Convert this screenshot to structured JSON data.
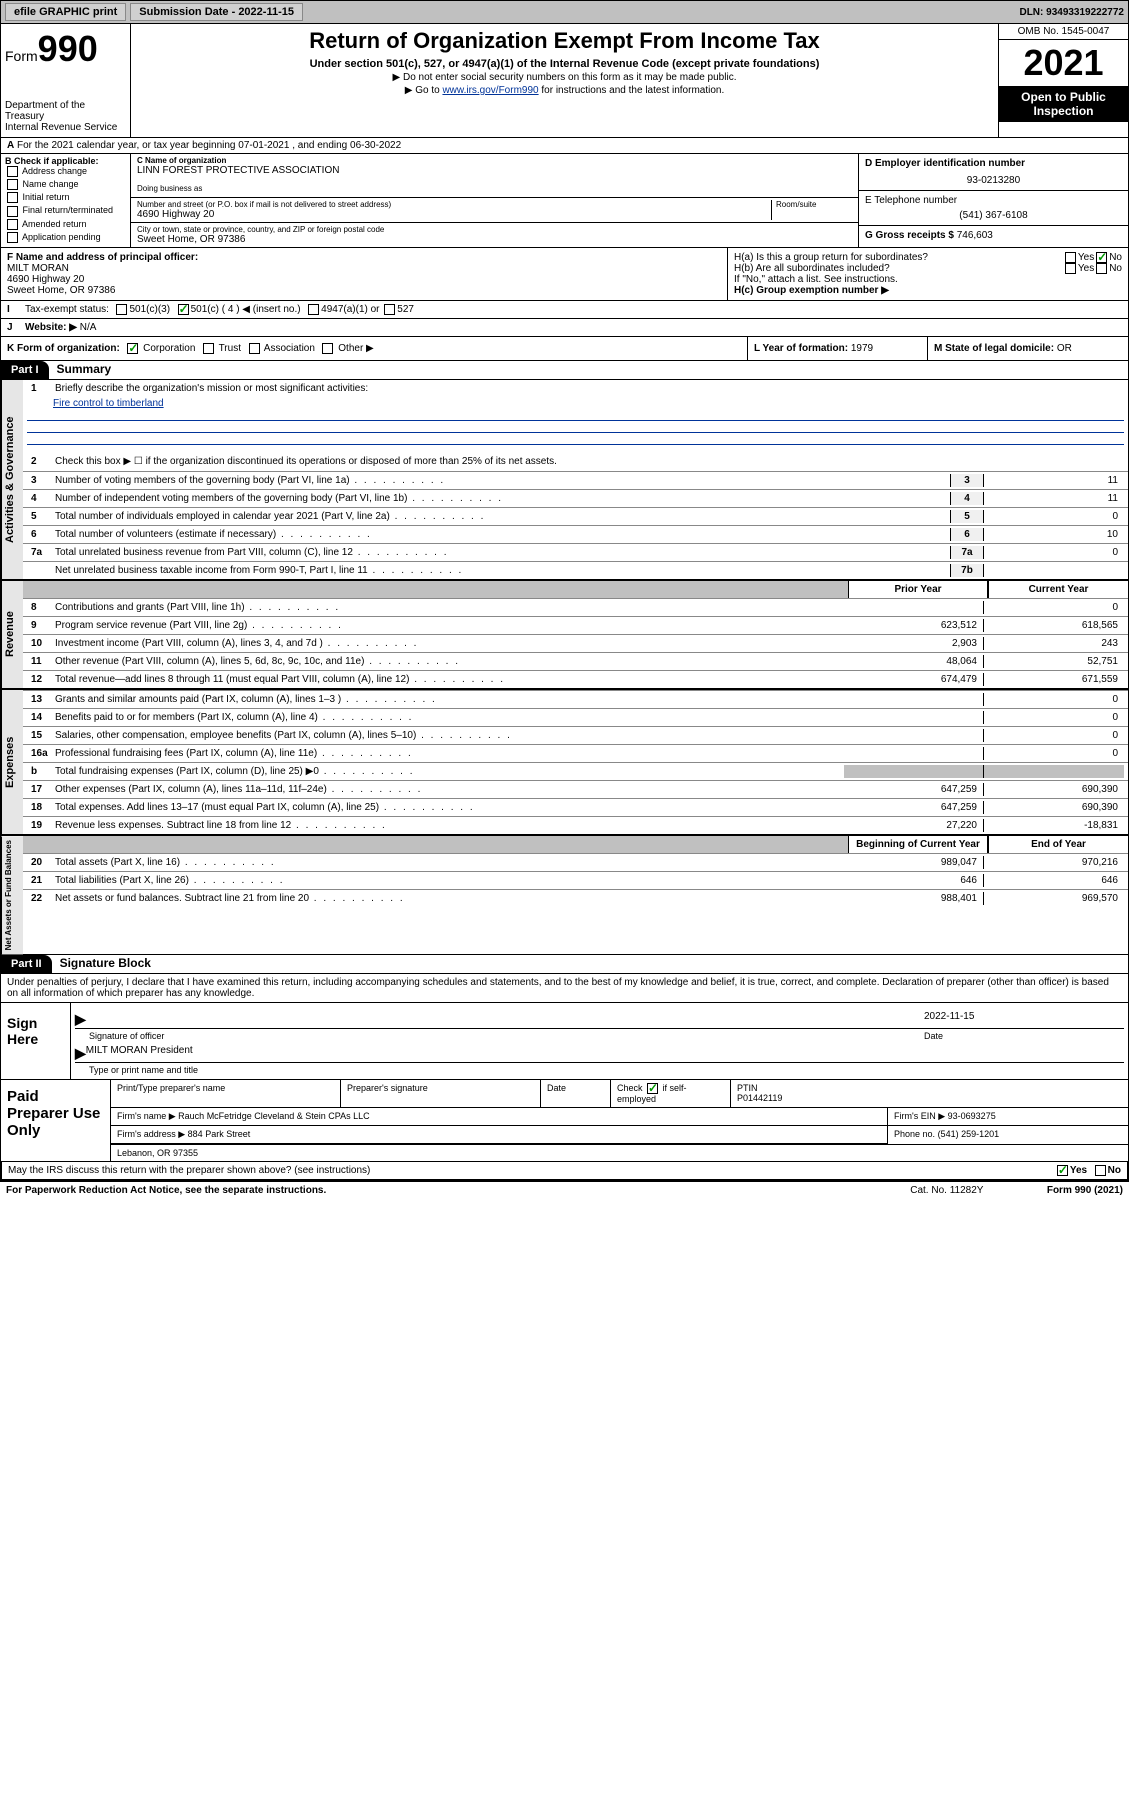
{
  "topbar": {
    "efile": "efile GRAPHIC print",
    "submission_label": "Submission Date - 2022-11-15",
    "dln": "DLN: 93493319222772"
  },
  "header": {
    "form_word": "Form",
    "form_num": "990",
    "title": "Return of Organization Exempt From Income Tax",
    "subtitle": "Under section 501(c), 527, or 4947(a)(1) of the Internal Revenue Code (except private foundations)",
    "note1": "▶ Do not enter social security numbers on this form as it may be made public.",
    "note2_pre": "▶ Go to ",
    "note2_link": "www.irs.gov/Form990",
    "note2_post": " for instructions and the latest information.",
    "dept": "Department of the Treasury",
    "irs": "Internal Revenue Service",
    "omb": "OMB No. 1545-0047",
    "year": "2021",
    "open": "Open to Public Inspection"
  },
  "rowA": "For the 2021 calendar year, or tax year beginning 07-01-2021   , and ending 06-30-2022",
  "boxB": {
    "label": "B Check if applicable:",
    "items": [
      "Address change",
      "Name change",
      "Initial return",
      "Final return/terminated",
      "Amended return",
      "Application pending"
    ]
  },
  "boxC": {
    "name_label": "C Name of organization",
    "name": "LINN FOREST PROTECTIVE ASSOCIATION",
    "dba_label": "Doing business as",
    "dba": "",
    "addr_label": "Number and street (or P.O. box if mail is not delivered to street address)",
    "room_label": "Room/suite",
    "addr": "4690 Highway 20",
    "city_label": "City or town, state or province, country, and ZIP or foreign postal code",
    "city": "Sweet Home, OR  97386"
  },
  "boxD": {
    "label": "D Employer identification number",
    "value": "93-0213280"
  },
  "boxE": {
    "label": "E Telephone number",
    "value": "(541) 367-6108"
  },
  "boxG": {
    "label": "G Gross receipts $",
    "value": "746,603"
  },
  "boxF": {
    "label": "F  Name and address of principal officer:",
    "name": "MILT MORAN",
    "addr1": "4690 Highway 20",
    "addr2": "Sweet Home, OR  97386"
  },
  "boxH": {
    "a": "H(a)  Is this a group return for subordinates?",
    "b": "H(b)  Are all subordinates included?",
    "b_note": "If \"No,\" attach a list. See instructions.",
    "c": "H(c)  Group exemption number ▶",
    "yes": "Yes",
    "no": "No"
  },
  "rowI": {
    "label": "Tax-exempt status:",
    "opts": [
      "501(c)(3)",
      "501(c) ( 4 ) ◀ (insert no.)",
      "4947(a)(1) or",
      "527"
    ]
  },
  "rowJ": {
    "label": "Website: ▶",
    "value": "N/A"
  },
  "rowK": {
    "label": "K Form of organization:",
    "opts": [
      "Corporation",
      "Trust",
      "Association",
      "Other ▶"
    ]
  },
  "rowL": {
    "label": "L Year of formation:",
    "value": "1979"
  },
  "rowM": {
    "label": "M State of legal domicile:",
    "value": "OR"
  },
  "part1": {
    "header": "Part I",
    "title": "Summary",
    "line1": "Briefly describe the organization's mission or most significant activities:",
    "mission": "Fire control to timberland",
    "line2": "Check this box ▶ ☐  if the organization discontinued its operations or disposed of more than 25% of its net assets.",
    "lines": [
      {
        "n": "3",
        "t": "Number of voting members of the governing body (Part VI, line 1a)",
        "box": "3",
        "v": "11"
      },
      {
        "n": "4",
        "t": "Number of independent voting members of the governing body (Part VI, line 1b)",
        "box": "4",
        "v": "11"
      },
      {
        "n": "5",
        "t": "Total number of individuals employed in calendar year 2021 (Part V, line 2a)",
        "box": "5",
        "v": "0"
      },
      {
        "n": "6",
        "t": "Total number of volunteers (estimate if necessary)",
        "box": "6",
        "v": "10"
      },
      {
        "n": "7a",
        "t": "Total unrelated business revenue from Part VIII, column (C), line 12",
        "box": "7a",
        "v": "0"
      },
      {
        "n": "",
        "t": "Net unrelated business taxable income from Form 990-T, Part I, line 11",
        "box": "7b",
        "v": ""
      }
    ],
    "prior_hdr": "Prior Year",
    "current_hdr": "Current Year",
    "rev": [
      {
        "n": "8",
        "t": "Contributions and grants (Part VIII, line 1h)",
        "p": "",
        "c": "0"
      },
      {
        "n": "9",
        "t": "Program service revenue (Part VIII, line 2g)",
        "p": "623,512",
        "c": "618,565"
      },
      {
        "n": "10",
        "t": "Investment income (Part VIII, column (A), lines 3, 4, and 7d )",
        "p": "2,903",
        "c": "243"
      },
      {
        "n": "11",
        "t": "Other revenue (Part VIII, column (A), lines 5, 6d, 8c, 9c, 10c, and 11e)",
        "p": "48,064",
        "c": "52,751"
      },
      {
        "n": "12",
        "t": "Total revenue—add lines 8 through 11 (must equal Part VIII, column (A), line 12)",
        "p": "674,479",
        "c": "671,559"
      }
    ],
    "exp": [
      {
        "n": "13",
        "t": "Grants and similar amounts paid (Part IX, column (A), lines 1–3 )",
        "p": "",
        "c": "0"
      },
      {
        "n": "14",
        "t": "Benefits paid to or for members (Part IX, column (A), line 4)",
        "p": "",
        "c": "0"
      },
      {
        "n": "15",
        "t": "Salaries, other compensation, employee benefits (Part IX, column (A), lines 5–10)",
        "p": "",
        "c": "0"
      },
      {
        "n": "16a",
        "t": "Professional fundraising fees (Part IX, column (A), line 11e)",
        "p": "",
        "c": "0"
      },
      {
        "n": "b",
        "t": "Total fundraising expenses (Part IX, column (D), line 25) ▶0",
        "p": "shaded",
        "c": "shaded"
      },
      {
        "n": "17",
        "t": "Other expenses (Part IX, column (A), lines 11a–11d, 11f–24e)",
        "p": "647,259",
        "c": "690,390"
      },
      {
        "n": "18",
        "t": "Total expenses. Add lines 13–17 (must equal Part IX, column (A), line 25)",
        "p": "647,259",
        "c": "690,390"
      },
      {
        "n": "19",
        "t": "Revenue less expenses. Subtract line 18 from line 12",
        "p": "27,220",
        "c": "-18,831"
      }
    ],
    "beg_hdr": "Beginning of Current Year",
    "end_hdr": "End of Year",
    "net": [
      {
        "n": "20",
        "t": "Total assets (Part X, line 16)",
        "p": "989,047",
        "c": "970,216"
      },
      {
        "n": "21",
        "t": "Total liabilities (Part X, line 26)",
        "p": "646",
        "c": "646"
      },
      {
        "n": "22",
        "t": "Net assets or fund balances. Subtract line 21 from line 20",
        "p": "988,401",
        "c": "969,570"
      }
    ],
    "tabs": {
      "gov": "Activities & Governance",
      "rev": "Revenue",
      "exp": "Expenses",
      "net": "Net Assets or Fund Balances"
    }
  },
  "part2": {
    "header": "Part II",
    "title": "Signature Block",
    "penalty": "Under penalties of perjury, I declare that I have examined this return, including accompanying schedules and statements, and to the best of my knowledge and belief, it is true, correct, and complete. Declaration of preparer (other than officer) is based on all information of which preparer has any knowledge.",
    "sign_here": "Sign Here",
    "sig_officer": "Signature of officer",
    "sig_date": "Date",
    "sig_date_val": "2022-11-15",
    "officer_name": "MILT MORAN  President",
    "name_title": "Type or print name and title",
    "paid": "Paid Preparer Use Only",
    "prep_name_label": "Print/Type preparer's name",
    "prep_sig_label": "Preparer's signature",
    "date_label": "Date",
    "check_if": "Check",
    "self_emp": "if self-employed",
    "ptin_label": "PTIN",
    "ptin": "P01442119",
    "firm_name_label": "Firm's name    ▶",
    "firm_name": "Rauch McFetridge Cleveland & Stein CPAs LLC",
    "firm_ein_label": "Firm's EIN ▶",
    "firm_ein": "93-0693275",
    "firm_addr_label": "Firm's address ▶",
    "firm_addr1": "884 Park Street",
    "firm_addr2": "Lebanon, OR  97355",
    "phone_label": "Phone no.",
    "phone": "(541) 259-1201",
    "may_irs": "May the IRS discuss this return with the preparer shown above? (see instructions)"
  },
  "footer": {
    "paperwork": "For Paperwork Reduction Act Notice, see the separate instructions.",
    "cat": "Cat. No. 11282Y",
    "form": "Form 990 (2021)"
  }
}
